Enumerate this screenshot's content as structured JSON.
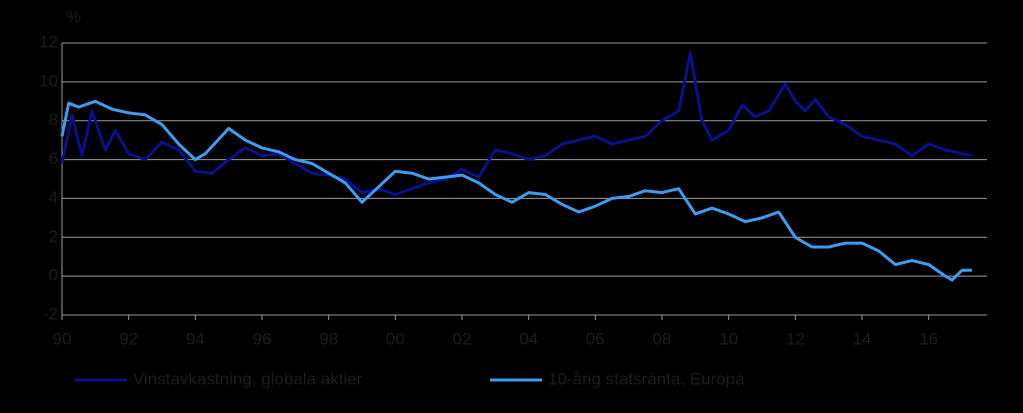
{
  "chart_data": {
    "type": "line",
    "ylabel": "%",
    "xlim": [
      1990,
      2017.75
    ],
    "ylim": [
      -2,
      12
    ],
    "yticks": [
      -2,
      0,
      2,
      4,
      6,
      8,
      10,
      12
    ],
    "xticks": [
      {
        "value": 1990,
        "label": "90"
      },
      {
        "value": 1992,
        "label": "92"
      },
      {
        "value": 1994,
        "label": "94"
      },
      {
        "value": 1996,
        "label": "96"
      },
      {
        "value": 1998,
        "label": "98"
      },
      {
        "value": 2000,
        "label": "00"
      },
      {
        "value": 2002,
        "label": "02"
      },
      {
        "value": 2004,
        "label": "04"
      },
      {
        "value": 2006,
        "label": "06"
      },
      {
        "value": 2008,
        "label": "08"
      },
      {
        "value": 2010,
        "label": "10"
      },
      {
        "value": 2012,
        "label": "12"
      },
      {
        "value": 2014,
        "label": "14"
      },
      {
        "value": 2016,
        "label": "16"
      }
    ],
    "grid": true,
    "legend": "bottom",
    "series": [
      {
        "name": "Vinstavkastning, globala aktier",
        "color": "#0a0f8c",
        "x": [
          1990,
          1990.3,
          1990.6,
          1990.9,
          1991.3,
          1991.6,
          1992,
          1992.5,
          1993,
          1993.5,
          1994,
          1994.5,
          1995,
          1995.5,
          1996,
          1996.5,
          1997,
          1997.5,
          1998,
          1998.5,
          1999,
          1999.5,
          2000,
          2000.5,
          2001,
          2001.5,
          2002,
          2002.5,
          2003,
          2003.5,
          2004,
          2004.5,
          2005,
          2005.5,
          2006,
          2006.5,
          2007,
          2007.5,
          2008,
          2008.5,
          2008.85,
          2009.2,
          2009.5,
          2010,
          2010.4,
          2010.8,
          2011.2,
          2011.7,
          2012,
          2012.3,
          2012.6,
          2013,
          2013.5,
          2014,
          2014.5,
          2015,
          2015.5,
          2016,
          2016.5,
          2017,
          2017.3
        ],
        "values": [
          5.8,
          8.3,
          6.2,
          8.5,
          6.5,
          7.5,
          6.3,
          6.0,
          6.9,
          6.5,
          5.4,
          5.3,
          6.0,
          6.6,
          6.2,
          6.3,
          5.8,
          5.3,
          5.2,
          5.0,
          4.3,
          4.5,
          4.2,
          4.5,
          4.8,
          5.0,
          5.5,
          5.1,
          6.5,
          6.3,
          6.0,
          6.2,
          6.8,
          7.0,
          7.2,
          6.8,
          7.0,
          7.2,
          8.0,
          8.5,
          11.5,
          8.0,
          7.0,
          7.5,
          8.8,
          8.2,
          8.5,
          9.9,
          9.0,
          8.5,
          9.1,
          8.2,
          7.8,
          7.2,
          7.0,
          6.8,
          6.2,
          6.8,
          6.5,
          6.3,
          6.2
        ]
      },
      {
        "name": "10-årig statsränta, Europa",
        "color": "#3d9cf0",
        "x": [
          1990,
          1990.2,
          1990.5,
          1991,
          1991.5,
          1992,
          1992.5,
          1993,
          1993.5,
          1994,
          1994.3,
          1995,
          1995.5,
          1996,
          1996.5,
          1997,
          1997.5,
          1998,
          1998.5,
          1999,
          1999.5,
          2000,
          2000.5,
          2001,
          2001.5,
          2002,
          2002.5,
          2003,
          2003.5,
          2004,
          2004.5,
          2005,
          2005.5,
          2006,
          2006.5,
          2007,
          2007.5,
          2008,
          2008.5,
          2009,
          2009.5,
          2010,
          2010.5,
          2011,
          2011.5,
          2012,
          2012.5,
          2013,
          2013.5,
          2014,
          2014.5,
          2015,
          2015.5,
          2016,
          2016.5,
          2016.7,
          2017,
          2017.3
        ],
        "values": [
          7.2,
          8.9,
          8.7,
          9.0,
          8.6,
          8.4,
          8.3,
          7.8,
          6.8,
          6.0,
          6.3,
          7.6,
          7.0,
          6.6,
          6.4,
          6.0,
          5.8,
          5.3,
          4.8,
          3.8,
          4.6,
          5.4,
          5.3,
          5.0,
          5.1,
          5.2,
          4.8,
          4.2,
          3.8,
          4.3,
          4.2,
          3.7,
          3.3,
          3.6,
          4.0,
          4.1,
          4.4,
          4.3,
          4.5,
          3.2,
          3.5,
          3.2,
          2.8,
          3.0,
          3.3,
          2.0,
          1.5,
          1.5,
          1.7,
          1.7,
          1.3,
          0.6,
          0.8,
          0.6,
          0.0,
          -0.2,
          0.3,
          0.3
        ]
      }
    ]
  }
}
